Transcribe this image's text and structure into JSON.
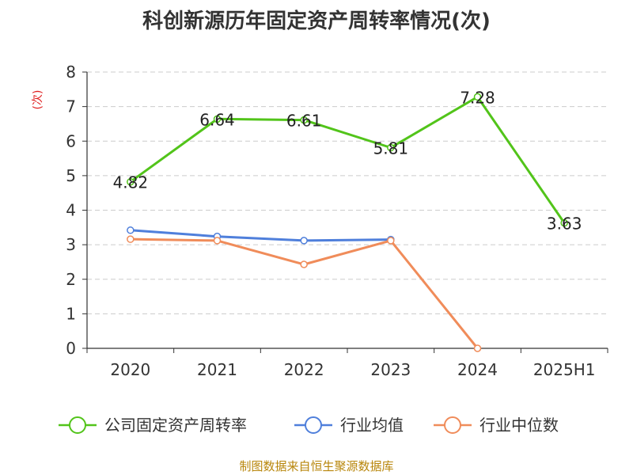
{
  "chart_data": {
    "type": "line",
    "title": "科创新源历年固定资产周转率情况(次)",
    "ylabel": "(次)",
    "categories": [
      "2020",
      "2021",
      "2022",
      "2023",
      "2024",
      "2025H1"
    ],
    "ylim": [
      0,
      8
    ],
    "yticks": [
      "0",
      "1",
      "2",
      "3",
      "4",
      "5",
      "6",
      "7",
      "8"
    ],
    "grid": true,
    "legend_position": "bottom",
    "series": [
      {
        "name": "公司固定资产周转率",
        "color": "#52c41a",
        "values": [
          4.82,
          6.64,
          6.61,
          5.81,
          7.28,
          3.63
        ],
        "labels": [
          "4.82",
          "6.64",
          "6.61",
          "5.81",
          "7.28",
          "3.63"
        ]
      },
      {
        "name": "行业均值",
        "color": "#4f7fdb",
        "values": [
          3.42,
          3.24,
          3.12,
          3.15,
          null,
          null
        ]
      },
      {
        "name": "行业中位数",
        "color": "#f08c5a",
        "values": [
          3.16,
          3.12,
          2.43,
          3.12,
          0.0,
          null
        ]
      }
    ]
  },
  "source_text": "制图数据来自恒生聚源数据库",
  "colors": {
    "axis": "#333333",
    "grid": "#cccccc",
    "ylabel": "#e02020",
    "source": "#b8860b"
  }
}
